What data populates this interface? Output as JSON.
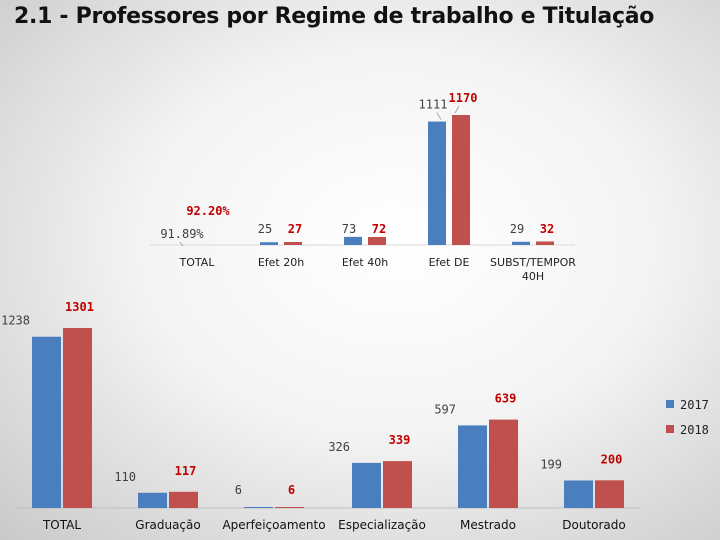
{
  "title": "2.1 - Professores por Regime de trabalho e Titulação",
  "colors": {
    "s2017": "#4a7ebf",
    "s2018": "#c0504d"
  },
  "legend": [
    "2017",
    "2018"
  ],
  "chart_data": [
    {
      "type": "bar",
      "categories": [
        "TOTAL",
        "Efet 20h",
        "Efet 40h",
        "Efet DE",
        "SUBST/TEMPOR 40H"
      ],
      "series": [
        {
          "name": "2017",
          "values": [
            91.89,
            25,
            73,
            1111,
            29
          ],
          "labels": [
            "91.89%",
            "25",
            "73",
            "1111",
            "29"
          ]
        },
        {
          "name": "2018",
          "values": [
            92.2,
            27,
            72,
            1170,
            32
          ],
          "labels": [
            "92.20%",
            "27",
            "72",
            "1170",
            "32"
          ]
        }
      ]
    },
    {
      "type": "bar",
      "categories": [
        "TOTAL",
        "Graduação",
        "Aperfeiçoamento",
        "Especialização",
        "Mestrado",
        "Doutorado"
      ],
      "series": [
        {
          "name": "2017",
          "values": [
            1238,
            110,
            6,
            326,
            597,
            199
          ],
          "labels": [
            "1238",
            "110",
            "6",
            "326",
            "597",
            "199"
          ]
        },
        {
          "name": "2018",
          "values": [
            1301,
            117,
            6,
            339,
            639,
            200
          ],
          "labels": [
            "1301",
            "117",
            "6",
            "339",
            "639",
            "200"
          ]
        }
      ]
    }
  ]
}
